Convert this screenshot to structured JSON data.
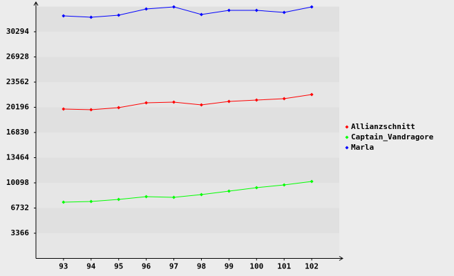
{
  "chart_data": {
    "type": "line",
    "x": [
      93,
      94,
      95,
      96,
      97,
      98,
      99,
      100,
      101,
      102
    ],
    "xlim": [
      92,
      103
    ],
    "xticks": [
      93,
      94,
      95,
      96,
      97,
      98,
      99,
      100,
      101,
      102
    ],
    "ylim": [
      0,
      33660
    ],
    "yticks": [
      3366,
      6732,
      10098,
      13464,
      16830,
      20196,
      23562,
      26928,
      30294
    ],
    "series": [
      {
        "name": "Allianzschnitt",
        "color": "#ff0000",
        "values": [
          19966,
          19874,
          20150,
          20796,
          20888,
          20519,
          20980,
          21165,
          21349,
          21902
        ]
      },
      {
        "name": "Captain_Vandragore",
        "color": "#00ff00",
        "values": [
          7516,
          7608,
          7885,
          8254,
          8162,
          8531,
          8992,
          9453,
          9822,
          10283
        ]
      },
      {
        "name": "Marla",
        "color": "#0000ff",
        "values": [
          32416,
          32232,
          32509,
          33339,
          33616,
          32601,
          33154,
          33154,
          32877,
          33616
        ]
      }
    ]
  }
}
